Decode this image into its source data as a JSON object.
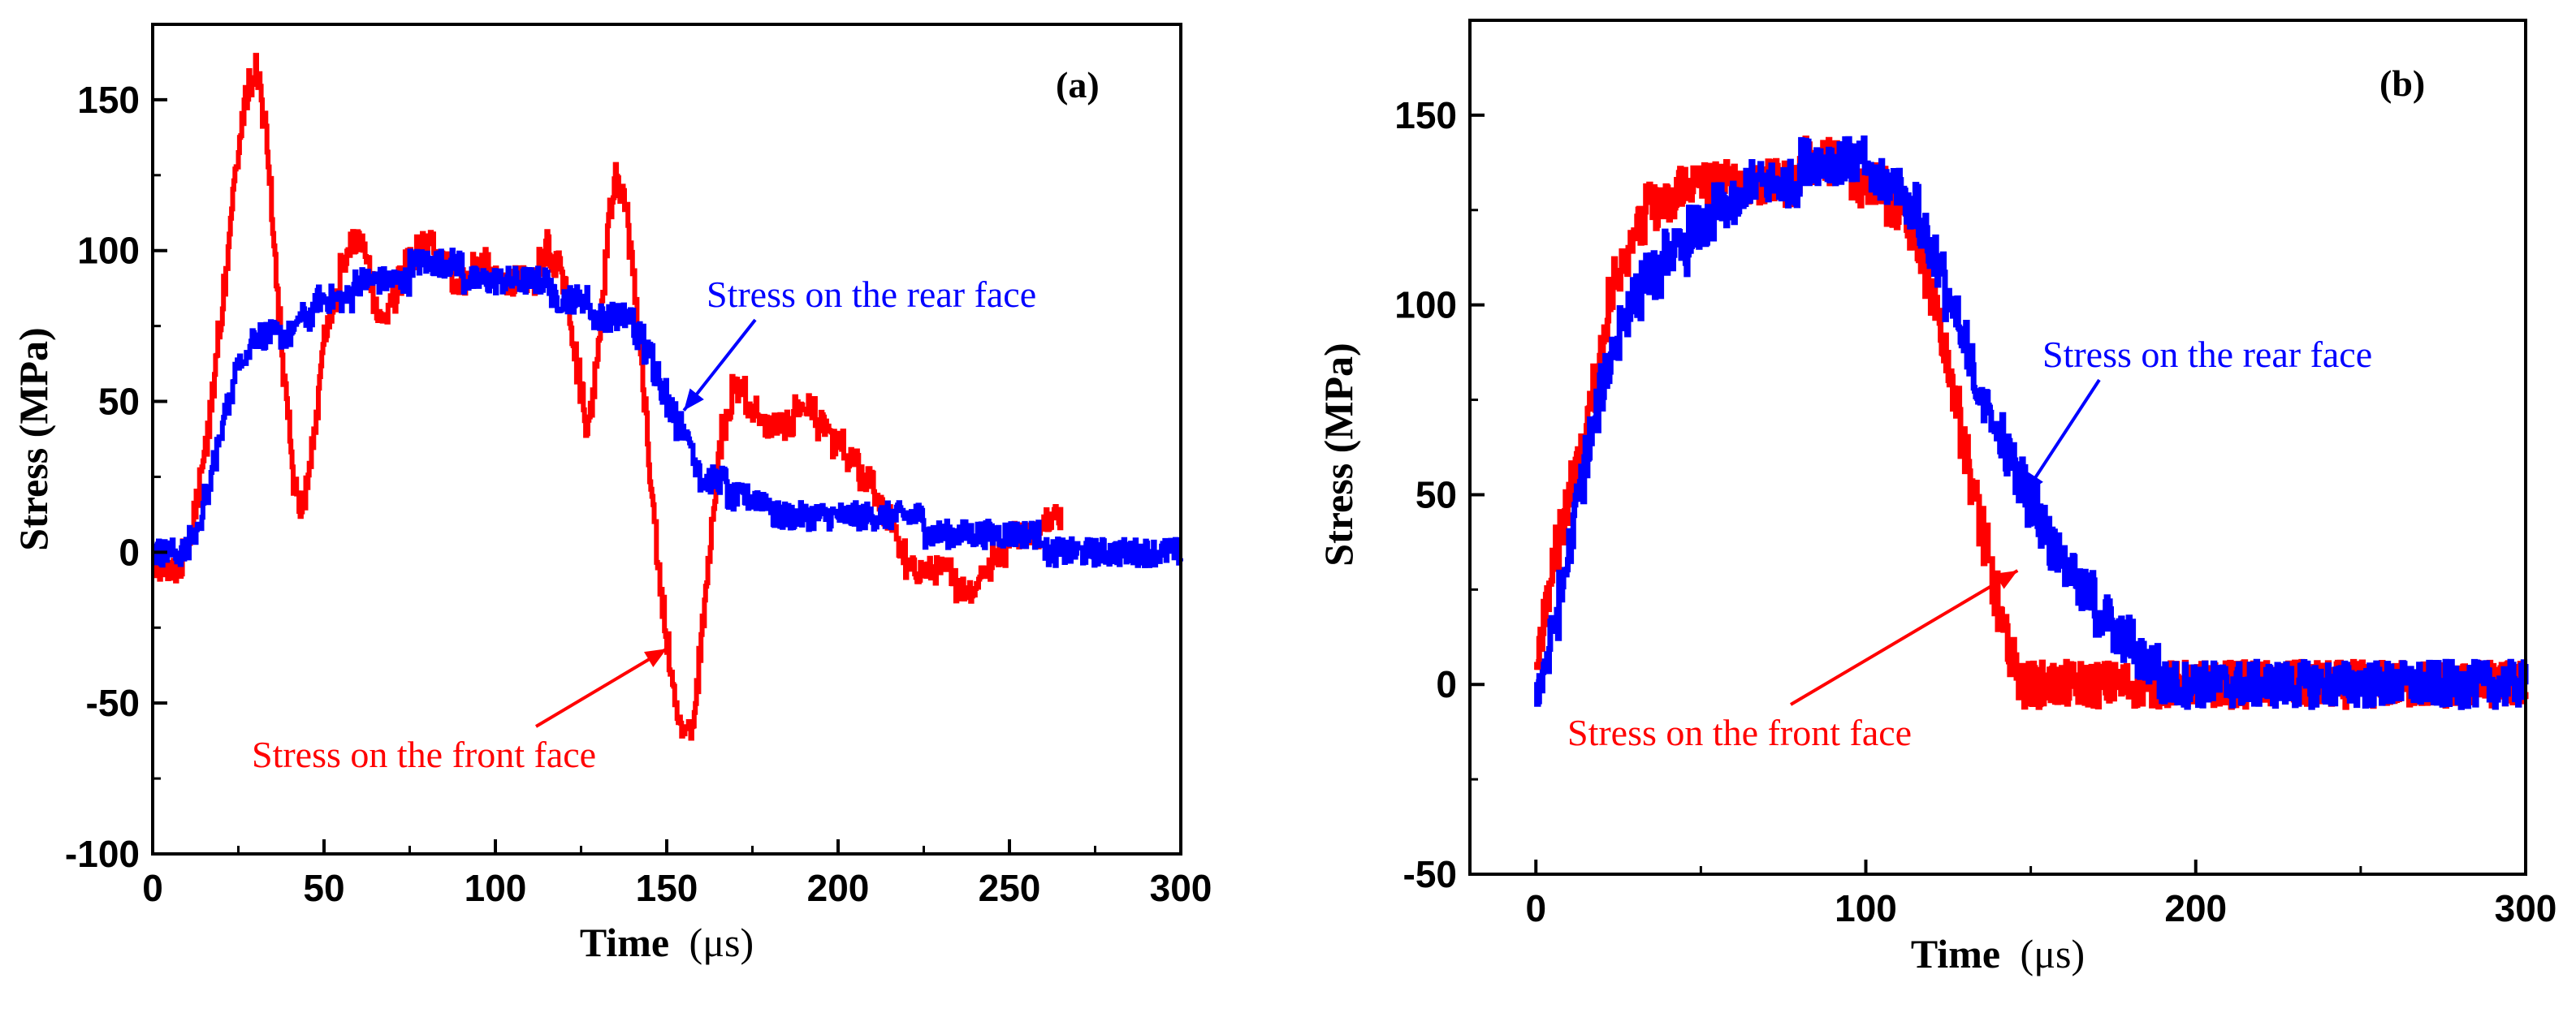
{
  "chart_data": [
    {
      "type": "line",
      "panel_label": "(a)",
      "xlabel_main": "Time",
      "xlabel_unit": "(μs)",
      "ylabel": "Stress (MPa)",
      "xlim": [
        0,
        300
      ],
      "ylim": [
        -100,
        175
      ],
      "x_ticks": [
        0,
        50,
        100,
        150,
        200,
        250,
        300
      ],
      "y_ticks": [
        -100,
        -50,
        0,
        50,
        100,
        150
      ],
      "grid": false,
      "colors": {
        "front": "#ff0000",
        "rear": "#0000ff"
      },
      "series": [
        {
          "name": "Stress on the front face",
          "color": "#ff0000",
          "x": [
            0,
            8,
            12,
            16,
            20,
            24,
            27,
            30,
            33,
            36,
            40,
            43,
            46,
            50,
            55,
            60,
            63,
            66,
            69,
            72,
            76,
            80,
            85,
            90,
            95,
            100,
            105,
            110,
            115,
            120,
            124,
            127,
            130,
            133,
            135,
            138,
            142,
            146,
            150,
            153,
            157,
            160,
            163,
            166,
            170,
            175,
            180,
            185,
            190,
            195,
            200,
            205,
            210,
            215,
            220,
            225,
            230,
            235,
            240,
            245,
            250,
            255,
            260,
            265
          ],
          "y": [
            -5,
            -5,
            10,
            40,
            80,
            125,
            150,
            160,
            140,
            90,
            35,
            10,
            30,
            70,
            95,
            105,
            95,
            75,
            80,
            90,
            98,
            102,
            95,
            90,
            95,
            92,
            90,
            88,
            100,
            92,
            60,
            40,
            70,
            110,
            125,
            115,
            70,
            10,
            -30,
            -55,
            -63,
            -30,
            10,
            40,
            55,
            48,
            40,
            42,
            50,
            42,
            35,
            28,
            22,
            10,
            -5,
            -8,
            -5,
            -10,
            -10,
            -3,
            5,
            5,
            10,
            15
          ]
        },
        {
          "name": "Stress on the rear face",
          "color": "#0000ff",
          "x": [
            0,
            8,
            12,
            16,
            20,
            24,
            27,
            30,
            34,
            38,
            42,
            46,
            50,
            55,
            60,
            65,
            70,
            75,
            80,
            90,
            100,
            105,
            110,
            115,
            120,
            125,
            130,
            135,
            140,
            145,
            150,
            155,
            160,
            165,
            170,
            175,
            180,
            190,
            200,
            210,
            220,
            230,
            240,
            250,
            260,
            270,
            280,
            290,
            300
          ],
          "y": [
            -2,
            0,
            5,
            20,
            40,
            60,
            68,
            70,
            70,
            72,
            75,
            80,
            83,
            85,
            88,
            90,
            92,
            93,
            94,
            93,
            92,
            91,
            90,
            88,
            84,
            82,
            80,
            78,
            75,
            65,
            50,
            40,
            25,
            22,
            20,
            18,
            15,
            14,
            13,
            12,
            10,
            8,
            6,
            5,
            3,
            2,
            0,
            -2,
            -2
          ]
        }
      ],
      "annotations": [
        {
          "text": "Stress on the rear face",
          "color": "#0000ff",
          "target_x": 155,
          "target_y": 47
        },
        {
          "text": "Stress on the front face",
          "color": "#ff0000",
          "target_x": 150,
          "target_y": -32
        }
      ]
    },
    {
      "type": "line",
      "panel_label": "(b)",
      "xlabel_main": "Time",
      "xlabel_unit": "(μs)",
      "ylabel": "Stress (MPa)",
      "xlim": [
        -20,
        300
      ],
      "ylim": [
        -50,
        175
      ],
      "x_ticks": [
        0,
        100,
        200,
        300
      ],
      "y_ticks": [
        -50,
        0,
        50,
        100,
        150
      ],
      "grid": false,
      "colors": {
        "front": "#ff0000",
        "rear": "#0000ff"
      },
      "series": [
        {
          "name": "Stress on the front face",
          "color": "#ff0000",
          "x": [
            0,
            3,
            6,
            10,
            14,
            18,
            22,
            26,
            30,
            35,
            40,
            45,
            50,
            55,
            60,
            65,
            70,
            75,
            80,
            85,
            90,
            95,
            100,
            105,
            110,
            115,
            118,
            122,
            126,
            130,
            134,
            138,
            142,
            146,
            150,
            155,
            160,
            170,
            180,
            190,
            200,
            210,
            220,
            230,
            240,
            250,
            260,
            270,
            280,
            290,
            300
          ],
          "y": [
            5,
            20,
            35,
            50,
            62,
            80,
            100,
            112,
            120,
            125,
            128,
            130,
            130,
            131,
            132,
            132,
            133,
            134,
            135,
            136,
            136,
            135,
            133,
            130,
            125,
            118,
            108,
            95,
            80,
            62,
            45,
            28,
            12,
            3,
            0,
            0,
            0,
            0,
            -2,
            -2,
            -2,
            -2,
            -2,
            -2,
            -2,
            -2,
            -2,
            -2,
            -2,
            -2,
            -2
          ]
        },
        {
          "name": "Stress on the rear face",
          "color": "#0000ff",
          "x": [
            0,
            3,
            6,
            10,
            14,
            18,
            22,
            26,
            30,
            35,
            40,
            45,
            50,
            55,
            60,
            65,
            70,
            75,
            80,
            85,
            90,
            95,
            100,
            105,
            110,
            115,
            118,
            122,
            126,
            130,
            134,
            138,
            142,
            146,
            150,
            155,
            160,
            165,
            170,
            175,
            180,
            185,
            190,
            195,
            200,
            210,
            220,
            230,
            240,
            250,
            260,
            270,
            280,
            290,
            300
          ],
          "y": [
            0,
            5,
            18,
            35,
            55,
            70,
            85,
            95,
            103,
            108,
            112,
            116,
            120,
            124,
            127,
            130,
            132,
            134,
            135,
            136,
            137,
            136,
            135,
            133,
            130,
            125,
            118,
            110,
            98,
            88,
            78,
            70,
            62,
            55,
            48,
            40,
            32,
            26,
            20,
            14,
            10,
            6,
            2,
            0,
            0,
            0,
            0,
            0,
            0,
            0,
            0,
            0,
            0,
            0,
            0
          ]
        }
      ],
      "annotations": [
        {
          "text": "Stress on the rear face",
          "color": "#0000ff",
          "target_x": 148,
          "target_y": 50
        },
        {
          "text": "Stress on the front face",
          "color": "#ff0000",
          "target_x": 146,
          "target_y": 30
        }
      ]
    }
  ]
}
